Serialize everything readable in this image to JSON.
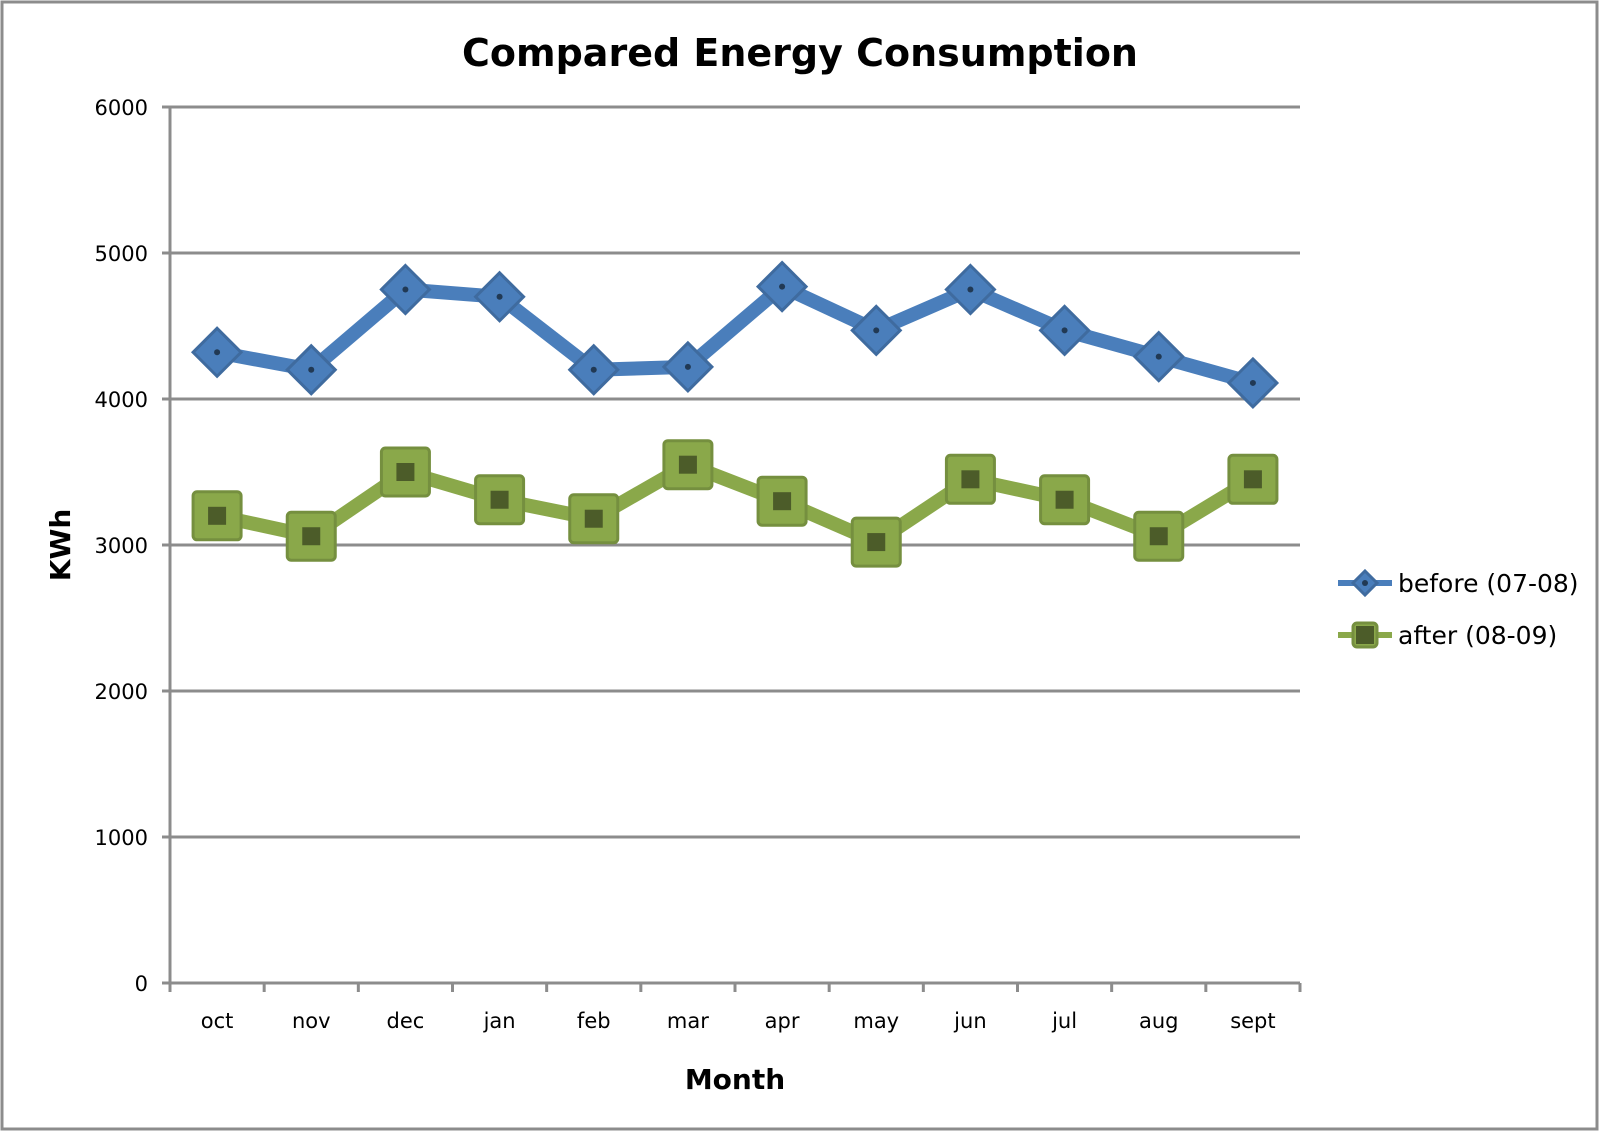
{
  "chart_data": {
    "type": "line",
    "title": "Compared Energy Consumption",
    "xlabel": "Month",
    "ylabel": "KWh",
    "ylim": [
      0,
      6000
    ],
    "yticks": [
      0,
      1000,
      2000,
      3000,
      4000,
      5000,
      6000
    ],
    "grid": true,
    "legend_position": "right",
    "categories": [
      "oct",
      "nov",
      "dec",
      "jan",
      "feb",
      "mar",
      "apr",
      "may",
      "jun",
      "jul",
      "aug",
      "sept"
    ],
    "series": [
      {
        "name": "before (07-08)",
        "color": "#4a7ebb",
        "marker": "diamond",
        "values": [
          4320,
          4200,
          4750,
          4700,
          4200,
          4220,
          4770,
          4470,
          4750,
          4470,
          4290,
          4110
        ]
      },
      {
        "name": "after (08-09)",
        "color": "#8aa84a",
        "marker": "square",
        "values": [
          3200,
          3060,
          3500,
          3310,
          3180,
          3550,
          3300,
          3020,
          3450,
          3310,
          3060,
          3450
        ]
      }
    ]
  }
}
